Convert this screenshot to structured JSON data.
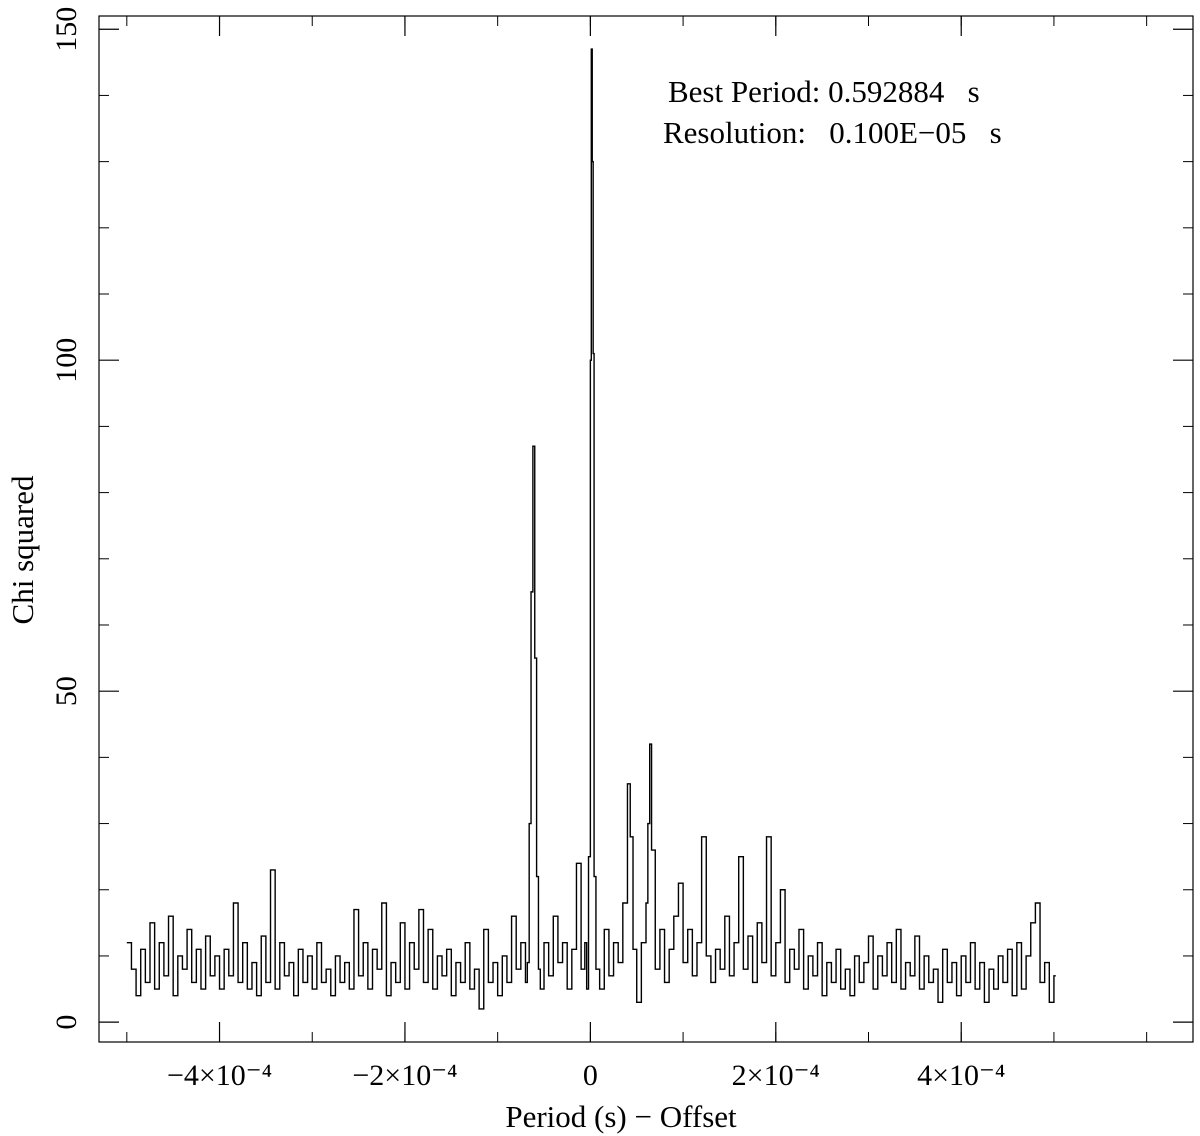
{
  "chart_data": {
    "type": "line",
    "title": "",
    "xlabel": "Period (s) − Offset",
    "ylabel": "Chi squared",
    "xlim": [
      -0.00053,
      0.00065
    ],
    "ylim": [
      -3,
      152
    ],
    "grid": false,
    "x_ticks": [
      {
        "value": -0.0004,
        "label": "−4×10⁻⁴"
      },
      {
        "value": -0.0002,
        "label": "−2×10⁻⁴"
      },
      {
        "value": 0,
        "label": "0"
      },
      {
        "value": 0.0002,
        "label": "2×10⁻⁴"
      },
      {
        "value": 0.0004,
        "label": "4×10⁻⁴"
      }
    ],
    "y_ticks": [
      {
        "value": 0,
        "label": "0"
      },
      {
        "value": 50,
        "label": "50"
      },
      {
        "value": 100,
        "label": "100"
      },
      {
        "value": 150,
        "label": "150"
      }
    ],
    "annotations": [
      {
        "text": "Best Period: 0.592884   s"
      },
      {
        "text": "Resolution:   0.100E−05   s"
      }
    ],
    "series": [
      {
        "style": "step",
        "x_start": -0.0005,
        "x_step": 1e-06,
        "points": [
          [
            -0.0005,
            12
          ],
          [
            -0.000495,
            8
          ],
          [
            -0.00049,
            4
          ],
          [
            -0.000485,
            11
          ],
          [
            -0.00048,
            6
          ],
          [
            -0.000475,
            15
          ],
          [
            -0.00047,
            5
          ],
          [
            -0.000465,
            12
          ],
          [
            -0.00046,
            7
          ],
          [
            -0.000455,
            16
          ],
          [
            -0.00045,
            4
          ],
          [
            -0.000445,
            10
          ],
          [
            -0.00044,
            8
          ],
          [
            -0.000435,
            14
          ],
          [
            -0.00043,
            6
          ],
          [
            -0.000425,
            11
          ],
          [
            -0.00042,
            5
          ],
          [
            -0.000415,
            13
          ],
          [
            -0.00041,
            7
          ],
          [
            -0.000405,
            10
          ],
          [
            -0.0004,
            5
          ],
          [
            -0.000395,
            11
          ],
          [
            -0.00039,
            7
          ],
          [
            -0.000385,
            18
          ],
          [
            -0.00038,
            6
          ],
          [
            -0.000375,
            12
          ],
          [
            -0.00037,
            5
          ],
          [
            -0.000365,
            9
          ],
          [
            -0.00036,
            4
          ],
          [
            -0.000355,
            13
          ],
          [
            -0.00035,
            6
          ],
          [
            -0.000345,
            23
          ],
          [
            -0.00034,
            5
          ],
          [
            -0.000335,
            12
          ],
          [
            -0.00033,
            7
          ],
          [
            -0.000325,
            9
          ],
          [
            -0.00032,
            4
          ],
          [
            -0.000315,
            11
          ],
          [
            -0.00031,
            6
          ],
          [
            -0.000305,
            10
          ],
          [
            -0.0003,
            5
          ],
          [
            -0.000295,
            12
          ],
          [
            -0.00029,
            6
          ],
          [
            -0.000285,
            8
          ],
          [
            -0.00028,
            4
          ],
          [
            -0.000275,
            10
          ],
          [
            -0.00027,
            6
          ],
          [
            -0.000265,
            9
          ],
          [
            -0.00026,
            5
          ],
          [
            -0.000255,
            17
          ],
          [
            -0.00025,
            7
          ],
          [
            -0.000245,
            12
          ],
          [
            -0.00024,
            5
          ],
          [
            -0.000235,
            11
          ],
          [
            -0.00023,
            8
          ],
          [
            -0.000225,
            18
          ],
          [
            -0.00022,
            4
          ],
          [
            -0.000215,
            9
          ],
          [
            -0.00021,
            6
          ],
          [
            -0.000205,
            15
          ],
          [
            -0.0002,
            5
          ],
          [
            -0.000195,
            12
          ],
          [
            -0.00019,
            8
          ],
          [
            -0.000185,
            17
          ],
          [
            -0.00018,
            6
          ],
          [
            -0.000175,
            14
          ],
          [
            -0.00017,
            5
          ],
          [
            -0.000165,
            10
          ],
          [
            -0.00016,
            7
          ],
          [
            -0.000155,
            11
          ],
          [
            -0.00015,
            4
          ],
          [
            -0.000145,
            9
          ],
          [
            -0.00014,
            6
          ],
          [
            -0.000135,
            12
          ],
          [
            -0.00013,
            5
          ],
          [
            -0.000125,
            8
          ],
          [
            -0.00012,
            2
          ],
          [
            -0.000115,
            14
          ],
          [
            -0.00011,
            6
          ],
          [
            -0.000105,
            9
          ],
          [
            -0.0001,
            4
          ],
          [
            -9.5e-05,
            10
          ],
          [
            -9e-05,
            6
          ],
          [
            -8.5e-05,
            16
          ],
          [
            -8e-05,
            8
          ],
          [
            -7.5e-05,
            12
          ],
          [
            -7e-05,
            6
          ],
          [
            -6.8e-05,
            9
          ],
          [
            -6.6e-05,
            30
          ],
          [
            -6.4e-05,
            65
          ],
          [
            -6.2e-05,
            87
          ],
          [
            -6e-05,
            55
          ],
          [
            -5.8e-05,
            22
          ],
          [
            -5.6e-05,
            8
          ],
          [
            -5.4e-05,
            5
          ],
          [
            -5e-05,
            12
          ],
          [
            -4.5e-05,
            7
          ],
          [
            -4e-05,
            16
          ],
          [
            -3.5e-05,
            9
          ],
          [
            -3e-05,
            12
          ],
          [
            -2.5e-05,
            5
          ],
          [
            -2e-05,
            11
          ],
          [
            -1.5e-05,
            24
          ],
          [
            -1e-05,
            8
          ],
          [
            -6e-06,
            12
          ],
          [
            -4e-06,
            5
          ],
          [
            -2e-06,
            25
          ],
          [
            0,
            100
          ],
          [
            1e-06,
            147
          ],
          [
            2e-06,
            130
          ],
          [
            3e-06,
            101
          ],
          [
            4e-06,
            22
          ],
          [
            6e-06,
            8
          ],
          [
            1e-05,
            5
          ],
          [
            1.5e-05,
            14
          ],
          [
            2e-05,
            7
          ],
          [
            2.5e-05,
            12
          ],
          [
            3e-05,
            9
          ],
          [
            3.5e-05,
            18
          ],
          [
            4e-05,
            36
          ],
          [
            4.3e-05,
            28
          ],
          [
            4.6e-05,
            11
          ],
          [
            5e-05,
            3
          ],
          [
            5.5e-05,
            12
          ],
          [
            6e-05,
            18
          ],
          [
            6.2e-05,
            30
          ],
          [
            6.4e-05,
            42
          ],
          [
            6.6e-05,
            26
          ],
          [
            7e-05,
            8
          ],
          [
            7.5e-05,
            14
          ],
          [
            8e-05,
            6
          ],
          [
            8.5e-05,
            11
          ],
          [
            9e-05,
            16
          ],
          [
            9.5e-05,
            21
          ],
          [
            0.0001,
            9
          ],
          [
            0.000105,
            14
          ],
          [
            0.00011,
            7
          ],
          [
            0.000115,
            12
          ],
          [
            0.00012,
            28
          ],
          [
            0.000125,
            10
          ],
          [
            0.00013,
            6
          ],
          [
            0.000135,
            11
          ],
          [
            0.00014,
            8
          ],
          [
            0.000145,
            16
          ],
          [
            0.00015,
            7
          ],
          [
            0.000155,
            12
          ],
          [
            0.00016,
            25
          ],
          [
            0.000165,
            8
          ],
          [
            0.00017,
            13
          ],
          [
            0.000175,
            6
          ],
          [
            0.00018,
            15
          ],
          [
            0.000185,
            9
          ],
          [
            0.00019,
            28
          ],
          [
            0.000195,
            7
          ],
          [
            0.0002,
            12
          ],
          [
            0.000205,
            20
          ],
          [
            0.00021,
            6
          ],
          [
            0.000215,
            11
          ],
          [
            0.00022,
            8
          ],
          [
            0.000225,
            14
          ],
          [
            0.00023,
            5
          ],
          [
            0.000235,
            10
          ],
          [
            0.00024,
            7
          ],
          [
            0.000245,
            12
          ],
          [
            0.00025,
            4
          ],
          [
            0.000255,
            9
          ],
          [
            0.00026,
            6
          ],
          [
            0.000265,
            11
          ],
          [
            0.00027,
            5
          ],
          [
            0.000275,
            8
          ],
          [
            0.00028,
            4
          ],
          [
            0.000285,
            10
          ],
          [
            0.00029,
            6
          ],
          [
            0.000295,
            9
          ],
          [
            0.0003,
            13
          ],
          [
            0.000305,
            5
          ],
          [
            0.00031,
            10
          ],
          [
            0.000315,
            7
          ],
          [
            0.00032,
            12
          ],
          [
            0.000325,
            6
          ],
          [
            0.00033,
            14
          ],
          [
            0.000335,
            5
          ],
          [
            0.00034,
            9
          ],
          [
            0.000345,
            7
          ],
          [
            0.00035,
            13
          ],
          [
            0.000355,
            5
          ],
          [
            0.00036,
            10
          ],
          [
            0.000365,
            6
          ],
          [
            0.00037,
            8
          ],
          [
            0.000375,
            3
          ],
          [
            0.00038,
            11
          ],
          [
            0.000385,
            6
          ],
          [
            0.00039,
            9
          ],
          [
            0.000395,
            4
          ],
          [
            0.0004,
            10
          ],
          [
            0.000405,
            6
          ],
          [
            0.00041,
            12
          ],
          [
            0.000415,
            5
          ],
          [
            0.00042,
            9
          ],
          [
            0.000425,
            3
          ],
          [
            0.00043,
            8
          ],
          [
            0.000435,
            5
          ],
          [
            0.00044,
            10
          ],
          [
            0.000445,
            6
          ],
          [
            0.00045,
            11
          ],
          [
            0.000455,
            4
          ],
          [
            0.00046,
            12
          ],
          [
            0.000465,
            5
          ],
          [
            0.00047,
            10
          ],
          [
            0.000475,
            15
          ],
          [
            0.00048,
            18
          ],
          [
            0.000485,
            6
          ],
          [
            0.00049,
            9
          ],
          [
            0.000495,
            3
          ],
          [
            0.0005,
            7
          ]
        ]
      }
    ]
  }
}
